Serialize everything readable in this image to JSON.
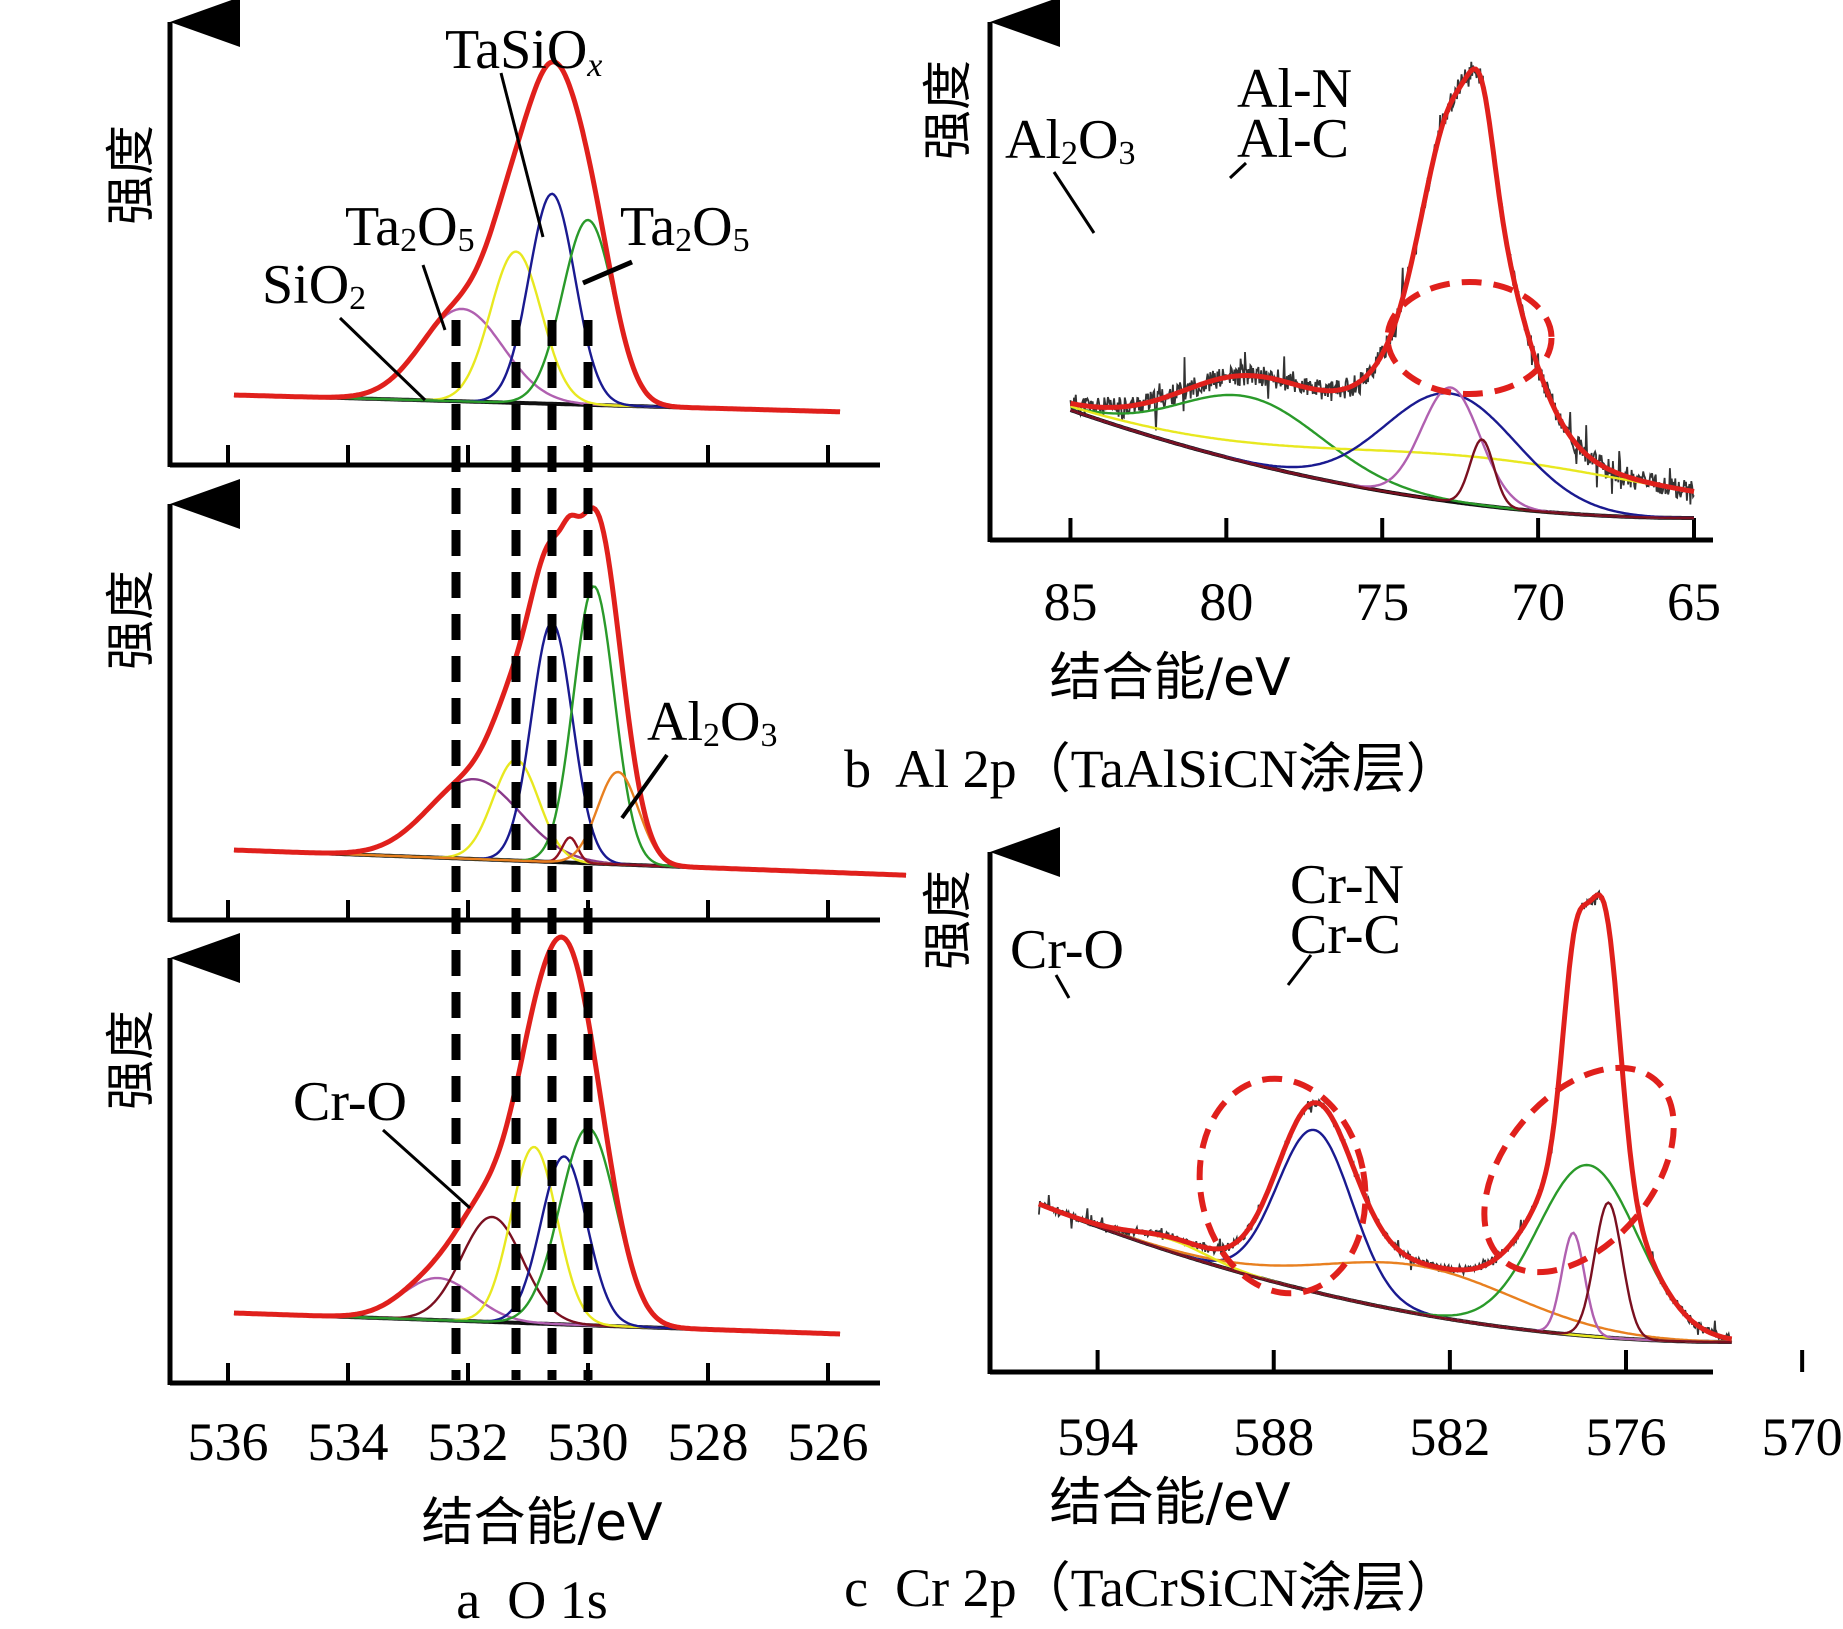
{
  "chart_data": [
    {
      "id": "a",
      "type": "line",
      "title": "a  O 1s",
      "xlabel": "结合能/eV",
      "ylabel": "强度",
      "x_reversed": true,
      "xlim": [
        537,
        525
      ],
      "xticks": [
        536,
        534,
        532,
        530,
        528,
        526
      ],
      "xtick_labels": [
        "536",
        "534",
        "532",
        "530",
        "528",
        "526"
      ],
      "reference_lines_eV": [
        532.2,
        531.2,
        530.6,
        530.0
      ],
      "subplots": [
        {
          "name": "top",
          "background": {
            "start": 0.1,
            "end": 0.06
          },
          "envelope_color": "#e0201c",
          "components": [
            {
              "name": "SiO2",
              "center": 532.1,
              "fwhm": 1.6,
              "height": 0.22,
              "color": "#b060b0"
            },
            {
              "name": "Ta2O5",
              "center": 531.2,
              "fwhm": 1.0,
              "height": 0.36,
              "color": "#e8e820"
            },
            {
              "name": "TaSiOx",
              "center": 530.6,
              "fwhm": 0.9,
              "height": 0.5,
              "color": "#1a1a90"
            },
            {
              "name": "Ta2O5",
              "center": 530.0,
              "fwhm": 1.0,
              "height": 0.44,
              "color": "#2a9a2a"
            }
          ],
          "annotations": [
            {
              "text": "TaSiOx",
              "target_eV": 530.6
            },
            {
              "text": "Ta2O5",
              "target_eV": 532.2
            },
            {
              "text": "SiO2",
              "target_eV": 532.7
            },
            {
              "text": "Ta2O5",
              "target_eV": 529.9
            }
          ]
        },
        {
          "name": "middle",
          "background": {
            "start": 0.1,
            "end": 0.04
          },
          "envelope_color": "#e0201c",
          "components": [
            {
              "name": "SiO2",
              "center": 531.9,
              "fwhm": 1.8,
              "height": 0.19,
              "color": "#8a3a8a"
            },
            {
              "name": "Ta2O5",
              "center": 531.2,
              "fwhm": 0.9,
              "height": 0.24,
              "color": "#e8e820"
            },
            {
              "name": "TaSiOx",
              "center": 530.6,
              "fwhm": 0.8,
              "height": 0.57,
              "color": "#1a1a90"
            },
            {
              "name": "peak-530.3",
              "center": 530.3,
              "fwhm": 0.3,
              "height": 0.06,
              "color": "#901020"
            },
            {
              "name": "Ta2O5",
              "center": 529.9,
              "fwhm": 0.8,
              "height": 0.66,
              "color": "#2a9a2a"
            },
            {
              "name": "Al2O3",
              "center": 529.5,
              "fwhm": 0.8,
              "height": 0.22,
              "color": "#e88020"
            }
          ],
          "annotations": [
            {
              "text": "Al2O3",
              "target_eV": 529.5
            }
          ]
        },
        {
          "name": "bottom",
          "background": {
            "start": 0.1,
            "end": 0.05
          },
          "envelope_color": "#e0201c",
          "components": [
            {
              "name": "SiO2",
              "center": 532.5,
              "fwhm": 1.4,
              "height": 0.1,
              "color": "#b060b0"
            },
            {
              "name": "Cr-O",
              "center": 531.6,
              "fwhm": 1.2,
              "height": 0.25,
              "color": "#7a1020"
            },
            {
              "name": "Ta2O5",
              "center": 530.9,
              "fwhm": 0.9,
              "height": 0.42,
              "color": "#e8e820"
            },
            {
              "name": "TaSiOx",
              "center": 530.4,
              "fwhm": 0.9,
              "height": 0.4,
              "color": "#1a1a90"
            },
            {
              "name": "Ta2O5",
              "center": 530.0,
              "fwhm": 1.1,
              "height": 0.47,
              "color": "#2a9a2a"
            }
          ],
          "annotations": [
            {
              "text": "Cr-O",
              "target_eV": 531.6
            }
          ]
        }
      ]
    },
    {
      "id": "b",
      "type": "line",
      "title": "b  Al 2p（TaAlSiCN涂层）",
      "xlabel": "结合能/eV",
      "ylabel": "强度",
      "x_reversed": true,
      "xlim": [
        87,
        61
      ],
      "xticks": [
        85,
        80,
        75,
        70,
        65
      ],
      "xtick_labels": [
        "85",
        "80",
        "75",
        "70",
        "65"
      ],
      "background": {
        "start": 0.36,
        "end": 0.0
      },
      "envelope_color": "#e0201c",
      "raw_noise": true,
      "components": [
        {
          "name": "Al2O3",
          "center": 79.2,
          "fwhm": 5.5,
          "height": 0.22,
          "color": "#2a9a2a"
        },
        {
          "name": "broad",
          "center": 71.5,
          "fwhm": 14.0,
          "height": 0.16,
          "color": "#e8e820"
        },
        {
          "name": "Al-N",
          "center": 72.8,
          "fwhm": 5.0,
          "height": 0.36,
          "color": "#1a1a90"
        },
        {
          "name": "Al-C",
          "center": 72.8,
          "fwhm": 2.2,
          "height": 0.38,
          "color": "#b060b0"
        },
        {
          "name": "peak-71.8",
          "center": 71.8,
          "fwhm": 0.9,
          "height": 0.22,
          "color": "#7a1020"
        },
        {
          "name": "main",
          "center": 72.0,
          "fwhm": 3.2,
          "height": 0.5,
          "color": "#e0201c"
        }
      ],
      "annotations": [
        {
          "text": "Al2O3",
          "target_eV": 78.7
        },
        {
          "text": "Al-N",
          "target_eV": 71.0
        },
        {
          "text": "Al-C",
          "target_eV": 70.8
        }
      ],
      "highlight_ellipse": {
        "center_eV": 72.0,
        "label": "Al-N / Al-C"
      }
    },
    {
      "id": "c",
      "type": "line",
      "title": "c  Cr 2p（TaCrSiCN涂层）",
      "xlabel": "结合能/eV",
      "ylabel": "强度",
      "x_reversed": true,
      "xlim": [
        597.5,
        570
      ],
      "xticks": [
        594,
        588,
        582,
        576,
        570
      ],
      "xtick_labels": [
        "594",
        "588",
        "582",
        "576",
        "570"
      ],
      "background": {
        "start": 0.46,
        "end": 0.0
      },
      "envelope_color": "#e0201c",
      "raw_noise": true,
      "components": [
        {
          "name": "Cr-O 2p1/2",
          "center": 586.6,
          "fwhm": 3.0,
          "height": 0.54,
          "color": "#1a1a90"
        },
        {
          "name": "satellite",
          "center": 583.0,
          "fwhm": 8.0,
          "height": 0.16,
          "color": "#e88020"
        },
        {
          "name": "yellow",
          "center": 591.5,
          "fwhm": 3.0,
          "height": 0.04,
          "color": "#e8e820"
        },
        {
          "name": "Cr-N",
          "center": 577.3,
          "fwhm": 4.0,
          "height": 0.57,
          "color": "#2a9a2a"
        },
        {
          "name": "Cr-C",
          "center": 577.8,
          "fwhm": 0.9,
          "height": 0.34,
          "color": "#b060b0"
        },
        {
          "name": "Cr-N-2",
          "center": 576.6,
          "fwhm": 1.1,
          "height": 0.45,
          "color": "#7a1020"
        },
        {
          "name": "main",
          "center": 577.2,
          "fwhm": 1.6,
          "height": 0.55,
          "color": "#e0201c"
        }
      ],
      "annotations": [
        {
          "text": "Cr-O",
          "target_eV": 590.5
        },
        {
          "text": "Cr-N",
          "target_eV": 576.0
        },
        {
          "text": "Cr-C",
          "target_eV": 575.9
        }
      ],
      "highlight_ellipses": [
        {
          "center_eV": 587.6,
          "label": "Cr-O"
        },
        {
          "center_eV": 577.5,
          "label": "Cr-N / Cr-C"
        }
      ]
    }
  ],
  "labels": {
    "a_top_tasiox": "TaSiO",
    "a_top_tasiox_sub": "x",
    "a_top_ta2o5_left": "Ta",
    "a_top_ta2o5_right": "Ta",
    "a_top_sio2": "SiO",
    "a_mid_al2o3": "Al",
    "a_bot_cro": "Cr-O",
    "b_al2o3": "Al",
    "b_aln": "Al-N",
    "b_alc": "Al-C",
    "c_cro": "Cr-O",
    "c_crn": "Cr-N",
    "c_crc": "Cr-C",
    "sub2": "2",
    "sub3": "3",
    "sub5": "5",
    "o": "O"
  }
}
